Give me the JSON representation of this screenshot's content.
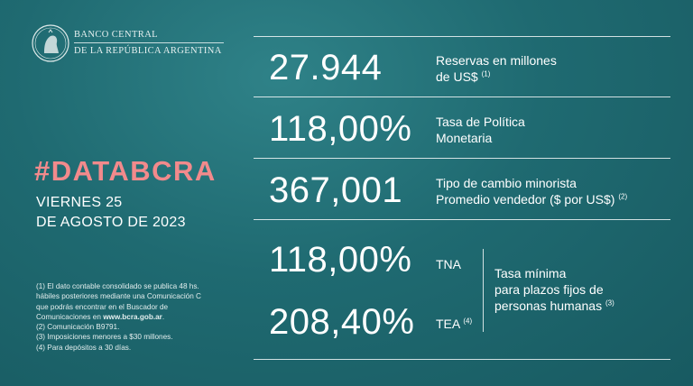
{
  "header": {
    "bank_line1": "BANCO CENTRAL",
    "bank_line2": "DE LA REPÚBLICA ARGENTINA"
  },
  "left": {
    "hashtag": "#DATABCRA",
    "date_line1": "VIERNES 25",
    "date_line2": "DE AGOSTO DE 2023"
  },
  "notes": {
    "n1_a": "(1) El dato contable consolidado se publica 48 hs.",
    "n1_b": "hábiles posteriores mediante una Comunicación C",
    "n1_c": "que podrás encontrar en el Buscador de",
    "n1_d": "Comunicaciones en ",
    "n1_link": "www.bcra.gob.ar",
    "n1_end": ".",
    "n2": "(2) Comunicación B9791.",
    "n3": "(3) Imposiciones menores a $30 millones.",
    "n4": "(4) Para depósitos a 30 días."
  },
  "metrics": {
    "reservas": {
      "value": "27.944",
      "label1": "Reservas en millones",
      "label2": "de US$",
      "note": "(1)"
    },
    "tasa_politica": {
      "value": "118,00%",
      "label1": "Tasa de Política",
      "label2": "Monetaria"
    },
    "tipo_cambio": {
      "value": "367,001",
      "label1": "Tipo de cambio minorista",
      "label2": "Promedio vendedor ($ por US$)",
      "note": "(2)"
    },
    "tna": {
      "value": "118,00%",
      "label": "TNA"
    },
    "tea": {
      "value": "208,40%",
      "label": "TEA",
      "note": "(4)"
    },
    "plazo_fijo": {
      "label1": "Tasa mínima",
      "label2": "para plazos fijos de",
      "label3": "personas humanas",
      "note": "(3)"
    }
  },
  "colors": {
    "background": "#1f6a71",
    "accent": "#f28a8c"
  },
  "icons": {
    "logo": "bcra-seal-icon"
  }
}
